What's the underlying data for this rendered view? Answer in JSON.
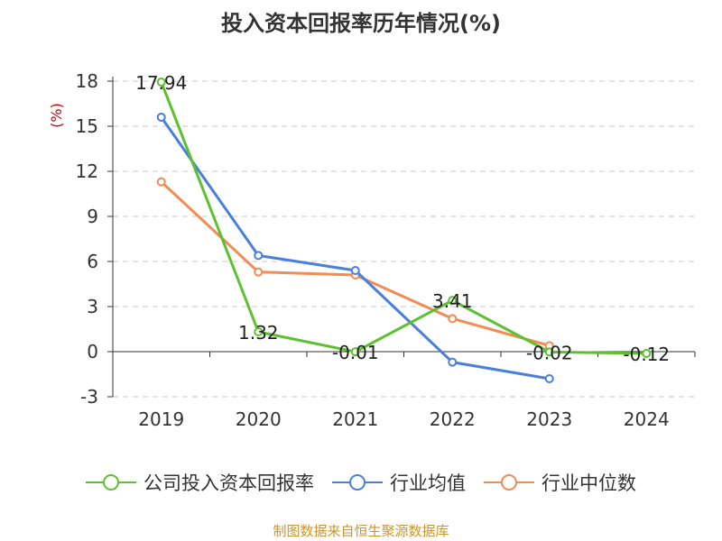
{
  "chart_data": {
    "type": "line",
    "title": "投入资本回报率历年情况(%)",
    "ylabel": "(%)",
    "categories": [
      "2019",
      "2020",
      "2021",
      "2022",
      "2023",
      "2024"
    ],
    "ylim": [
      -3,
      18
    ],
    "yticks": [
      18,
      15,
      12,
      9,
      6,
      3,
      0,
      -3
    ],
    "grid": true,
    "legend_position": "bottom",
    "series": [
      {
        "name": "公司投入资本回报率",
        "color": "#5cc12f",
        "values": [
          17.94,
          1.32,
          -0.01,
          3.41,
          -0.02,
          -0.12
        ],
        "labels": [
          "17.94",
          "1.32",
          "-0.01",
          "3.41",
          "-0.02",
          "-0.12"
        ]
      },
      {
        "name": "行业均值",
        "color": "#4a7fdc",
        "values": [
          15.6,
          6.4,
          5.4,
          -0.7,
          -1.8,
          null
        ]
      },
      {
        "name": "行业中位数",
        "color": "#f28b54",
        "values": [
          11.3,
          5.3,
          5.1,
          2.2,
          0.4,
          null
        ]
      }
    ]
  },
  "source_note": "制图数据来自恒生聚源数据库"
}
